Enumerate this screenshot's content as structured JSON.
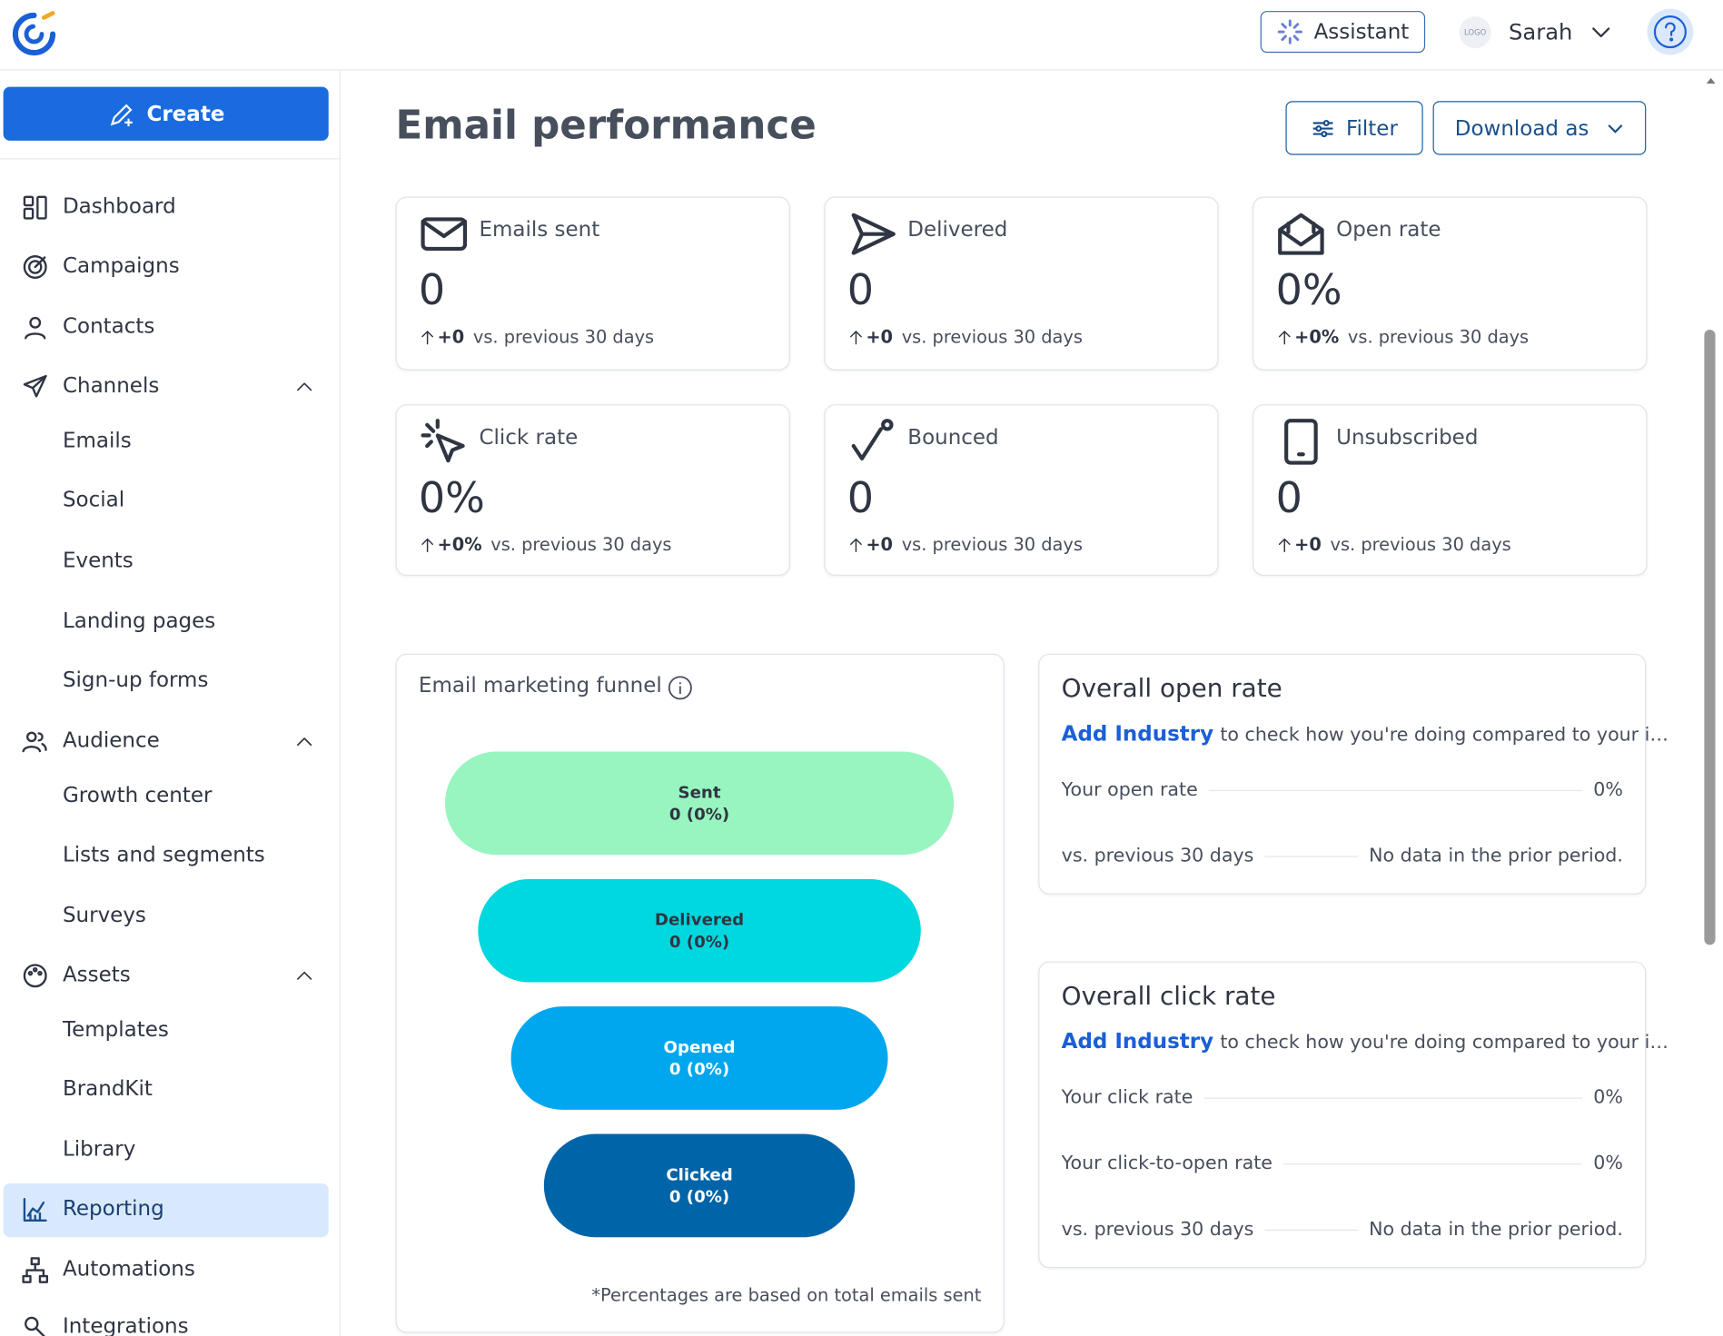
{
  "header": {
    "assistant": "Assistant",
    "logo": "LOGO",
    "user": "Sarah"
  },
  "sidebar": {
    "create": "Create",
    "items": [
      {
        "label": "Dashboard"
      },
      {
        "label": "Campaigns"
      },
      {
        "label": "Contacts"
      },
      {
        "label": "Channels",
        "expanded": true
      },
      {
        "label": "Emails",
        "sub": true
      },
      {
        "label": "Social",
        "sub": true
      },
      {
        "label": "Events",
        "sub": true
      },
      {
        "label": "Landing pages",
        "sub": true
      },
      {
        "label": "Sign-up forms",
        "sub": true
      },
      {
        "label": "Audience",
        "expanded": true
      },
      {
        "label": "Growth center",
        "sub": true
      },
      {
        "label": "Lists and segments",
        "sub": true
      },
      {
        "label": "Surveys",
        "sub": true
      },
      {
        "label": "Assets",
        "expanded": true
      },
      {
        "label": "Templates",
        "sub": true
      },
      {
        "label": "BrandKit",
        "sub": true
      },
      {
        "label": "Library",
        "sub": true
      },
      {
        "label": "Reporting",
        "active": true
      },
      {
        "label": "Automations"
      },
      {
        "label": "Integrations"
      }
    ]
  },
  "page": {
    "title": "Email performance",
    "filter": "Filter",
    "download": "Download as"
  },
  "metrics": [
    {
      "label": "Emails sent",
      "value": "0",
      "change": "+0",
      "period": "vs. previous 30 days"
    },
    {
      "label": "Delivered",
      "value": "0",
      "change": "+0",
      "period": "vs. previous 30 days"
    },
    {
      "label": "Open rate",
      "value": "0%",
      "change": "+0%",
      "period": "vs. previous 30 days"
    },
    {
      "label": "Click rate",
      "value": "0%",
      "change": "+0%",
      "period": "vs. previous 30 days"
    },
    {
      "label": "Bounced",
      "value": "0",
      "change": "+0",
      "period": "vs. previous 30 days"
    },
    {
      "label": "Unsubscribed",
      "value": "0",
      "change": "+0",
      "period": "vs. previous 30 days"
    }
  ],
  "funnel": {
    "title": "Email marketing funnel",
    "stages": [
      {
        "label": "Sent",
        "value": "0 (0%)",
        "color": "#98f5c0"
      },
      {
        "label": "Delivered",
        "value": "0 (0%)",
        "color": "#00d8e0"
      },
      {
        "label": "Opened",
        "value": "0 (0%)",
        "color": "#00a7ee"
      },
      {
        "label": "Clicked",
        "value": "0 (0%)",
        "color": "#0064a8"
      }
    ],
    "note": "*Percentages are based on total emails sent"
  },
  "panels": [
    {
      "title": "Overall open rate",
      "link": "Add Industry",
      "hint": "to check how you're doing compared to your i…",
      "rows": [
        {
          "label": "Your open rate",
          "value": "0%"
        },
        {
          "label": "vs. previous 30 days",
          "value": "No data in the prior period."
        }
      ]
    },
    {
      "title": "Overall click rate",
      "link": "Add Industry",
      "hint": "to check how you're doing compared to your i…",
      "rows": [
        {
          "label": "Your click rate",
          "value": "0%"
        },
        {
          "label": "Your click-to-open rate",
          "value": "0%"
        },
        {
          "label": "vs. previous 30 days",
          "value": "No data in the prior period."
        }
      ]
    }
  ]
}
